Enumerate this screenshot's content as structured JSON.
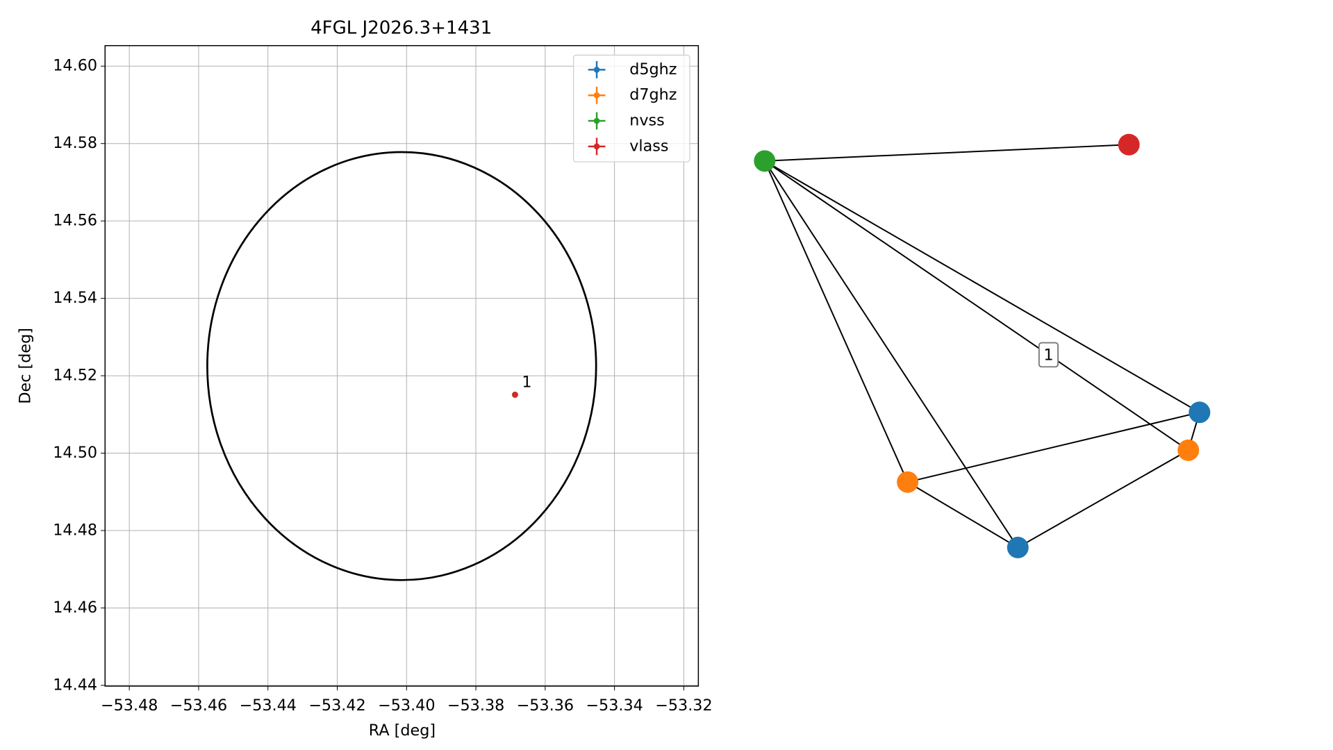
{
  "chart_data": [
    {
      "type": "scatter",
      "title": "4FGL J2026.3+1431",
      "xlabel": "RA [deg]",
      "ylabel": "Dec [deg]",
      "xlim": [
        -53.487,
        -53.3158
      ],
      "ylim": [
        14.4398,
        14.6053
      ],
      "xticks": [
        {
          "value": -53.48,
          "label": "−53.48"
        },
        {
          "value": -53.46,
          "label": "−53.46"
        },
        {
          "value": -53.44,
          "label": "−53.44"
        },
        {
          "value": -53.42,
          "label": "−53.42"
        },
        {
          "value": -53.4,
          "label": "−53.40"
        },
        {
          "value": -53.38,
          "label": "−53.38"
        },
        {
          "value": -53.36,
          "label": "−53.36"
        },
        {
          "value": -53.34,
          "label": "−53.34"
        },
        {
          "value": -53.32,
          "label": "−53.32"
        }
      ],
      "yticks": [
        14.44,
        14.46,
        14.48,
        {
          "value": 14.5,
          "label": "14.50"
        },
        14.52,
        14.54,
        14.56,
        14.58,
        {
          "value": 14.6,
          "label": "14.60"
        }
      ],
      "grid": true,
      "legend": "upper right",
      "series": [
        {
          "name": "d5ghz",
          "color": "#1f77b4",
          "x": [
            -53.3687
          ],
          "y": [
            14.5151
          ],
          "xerr": [
            0.0005
          ],
          "yerr": [
            0.0005
          ]
        },
        {
          "name": "d7ghz",
          "color": "#ff7f0e",
          "x": [
            -53.3687
          ],
          "y": [
            14.5151
          ],
          "xerr": [
            0.0005
          ],
          "yerr": [
            0.0005
          ]
        },
        {
          "name": "nvss",
          "color": "#2ca02c",
          "x": [
            -53.3687
          ],
          "y": [
            14.5151
          ],
          "xerr": [
            0.0005
          ],
          "yerr": [
            0.0005
          ]
        },
        {
          "name": "vlass",
          "color": "#d62728",
          "x": [
            -53.3687
          ],
          "y": [
            14.5151
          ],
          "xerr": [
            0.0005
          ],
          "yerr": [
            0.0005
          ]
        }
      ],
      "ellipse": {
        "x": -53.4014,
        "y": 14.5225,
        "rx": 0.0561,
        "ry": 0.0553,
        "color": "#000000"
      },
      "annotations": [
        {
          "text": "1",
          "x": -53.3687,
          "y": 14.5151
        }
      ]
    },
    {
      "type": "network",
      "nodes": [
        {
          "color": "#2ca02c"
        },
        {
          "color": "#d62728"
        },
        {
          "color": "#1f77b4"
        },
        {
          "color": "#ff7f0e"
        },
        {
          "color": "#ff7f0e"
        },
        {
          "color": "#1f77b4"
        }
      ],
      "edges": [
        {
          "source": 0,
          "target": 1
        },
        {
          "source": 0,
          "target": 2
        },
        {
          "source": 0,
          "target": 3,
          "label": "1"
        },
        {
          "source": 0,
          "target": 4
        },
        {
          "source": 0,
          "target": 5
        },
        {
          "source": 2,
          "target": 3
        },
        {
          "source": 2,
          "target": 4
        },
        {
          "source": 3,
          "target": 5
        },
        {
          "source": 4,
          "target": 5
        }
      ]
    }
  ]
}
